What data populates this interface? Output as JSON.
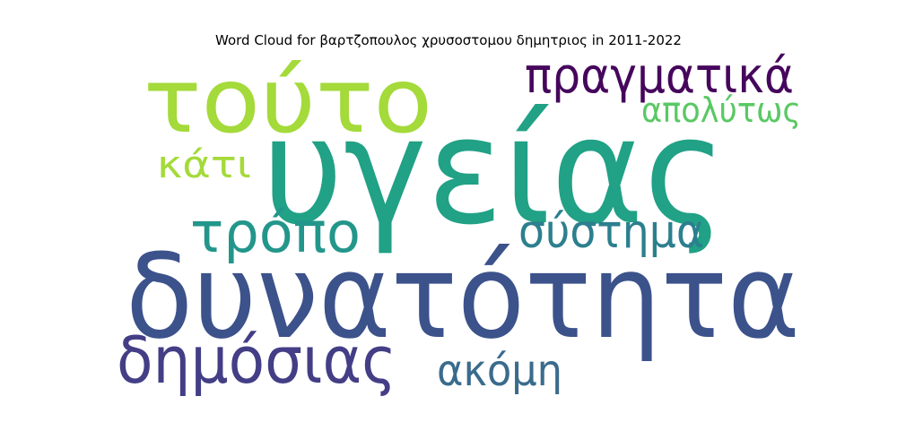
{
  "chart_data": {
    "type": "wordcloud",
    "title": "Word Cloud for βαρτζοπουλος χρυσοστομου δημητριος in 2011-2022",
    "words": [
      {
        "text": "υγείας",
        "color": "#21a186"
      },
      {
        "text": "δυνατότητα",
        "color": "#3c528b"
      },
      {
        "text": "τούτο",
        "color": "#a4da3a"
      },
      {
        "text": "πραγματικά",
        "color": "#46065c"
      },
      {
        "text": "απολύτως",
        "color": "#5ac864"
      },
      {
        "text": "κάτι",
        "color": "#a4da3a"
      },
      {
        "text": "τρόπο",
        "color": "#23968b"
      },
      {
        "text": "σύστημα",
        "color": "#2c7f8e"
      },
      {
        "text": "δημόσιας",
        "color": "#433e85"
      },
      {
        "text": "ακόμη",
        "color": "#3a6b8d"
      }
    ]
  }
}
